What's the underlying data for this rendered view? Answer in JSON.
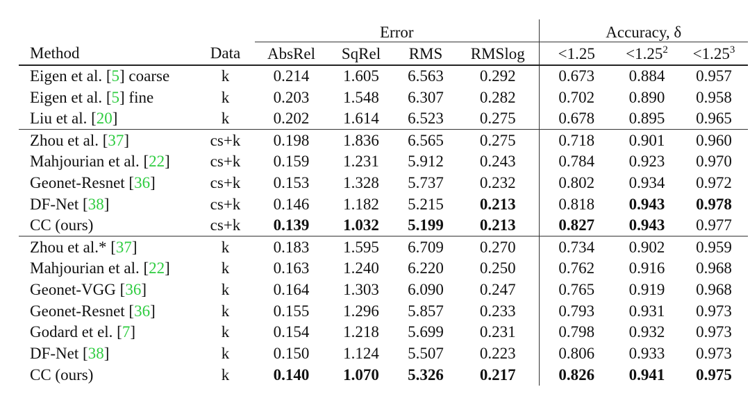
{
  "header": {
    "error_group": "Error",
    "accuracy_group": "Accuracy, δ",
    "columns": [
      "Method",
      "Data",
      "AbsRel",
      "SqRel",
      "RMS",
      "RMSlog"
    ],
    "acc_base": "<1.25",
    "acc_sup": [
      "",
      "2",
      "3"
    ]
  },
  "groups": [
    [
      {
        "m": "Eigen et al. [",
        "cite": "5",
        "post": "] coarse",
        "data": "k",
        "vals": [
          "0.214",
          "1.605",
          "6.563",
          "0.292",
          "0.673",
          "0.884",
          "0.957"
        ],
        "bold": []
      },
      {
        "m": "Eigen et al. [",
        "cite": "5",
        "post": "] fine",
        "data": "k",
        "vals": [
          "0.203",
          "1.548",
          "6.307",
          "0.282",
          "0.702",
          "0.890",
          "0.958"
        ],
        "bold": []
      },
      {
        "m": "Liu et al. [",
        "cite": "20",
        "post": "]",
        "data": "k",
        "vals": [
          "0.202",
          "1.614",
          "6.523",
          "0.275",
          "0.678",
          "0.895",
          "0.965"
        ],
        "bold": []
      }
    ],
    [
      {
        "m": "Zhou et al. [",
        "cite": "37",
        "post": "]",
        "data": "cs+k",
        "vals": [
          "0.198",
          "1.836",
          "6.565",
          "0.275",
          "0.718",
          "0.901",
          "0.960"
        ],
        "bold": []
      },
      {
        "m": "Mahjourian et al. [",
        "cite": "22",
        "post": "]",
        "data": "cs+k",
        "vals": [
          "0.159",
          "1.231",
          "5.912",
          "0.243",
          "0.784",
          "0.923",
          "0.970"
        ],
        "bold": []
      },
      {
        "m": "Geonet-Resnet [",
        "cite": "36",
        "post": "]",
        "data": "cs+k",
        "vals": [
          "0.153",
          "1.328",
          "5.737",
          "0.232",
          "0.802",
          "0.934",
          "0.972"
        ],
        "bold": []
      },
      {
        "m": "DF-Net [",
        "cite": "38",
        "post": "]",
        "data": "cs+k",
        "vals": [
          "0.146",
          "1.182",
          "5.215",
          "0.213",
          "0.818",
          "0.943",
          "0.978"
        ],
        "bold": [
          3,
          5,
          6
        ]
      },
      {
        "m": "CC (ours)",
        "cite": "",
        "post": "",
        "data": "cs+k",
        "vals": [
          "0.139",
          "1.032",
          "5.199",
          "0.213",
          "0.827",
          "0.943",
          "0.977"
        ],
        "bold": [
          0,
          1,
          2,
          3,
          4,
          5
        ]
      }
    ],
    [
      {
        "m": "Zhou et al.* [",
        "cite": "37",
        "post": "]",
        "data": "k",
        "vals": [
          "0.183",
          "1.595",
          "6.709",
          "0.270",
          "0.734",
          "0.902",
          "0.959"
        ],
        "bold": []
      },
      {
        "m": "Mahjourian et al. [",
        "cite": "22",
        "post": "]",
        "data": "k",
        "vals": [
          "0.163",
          "1.240",
          "6.220",
          "0.250",
          "0.762",
          "0.916",
          "0.968"
        ],
        "bold": []
      },
      {
        "m": "Geonet-VGG [",
        "cite": "36",
        "post": "]",
        "data": "k",
        "vals": [
          "0.164",
          "1.303",
          "6.090",
          "0.247",
          "0.765",
          "0.919",
          "0.968"
        ],
        "bold": []
      },
      {
        "m": "Geonet-Resnet [",
        "cite": "36",
        "post": "]",
        "data": "k",
        "vals": [
          "0.155",
          "1.296",
          "5.857",
          "0.233",
          "0.793",
          "0.931",
          "0.973"
        ],
        "bold": []
      },
      {
        "m": "Godard et el. [",
        "cite": "7",
        "post": "]",
        "data": "k",
        "vals": [
          "0.154",
          "1.218",
          "5.699",
          "0.231",
          "0.798",
          "0.932",
          "0.973"
        ],
        "bold": []
      },
      {
        "m": "DF-Net [",
        "cite": "38",
        "post": "]",
        "data": "k",
        "vals": [
          "0.150",
          "1.124",
          "5.507",
          "0.223",
          "0.806",
          "0.933",
          "0.973"
        ],
        "bold": []
      },
      {
        "m": "CC (ours)",
        "cite": "",
        "post": "",
        "data": "k",
        "vals": [
          "0.140",
          "1.070",
          "5.326",
          "0.217",
          "0.826",
          "0.941",
          "0.975"
        ],
        "bold": [
          0,
          1,
          2,
          3,
          4,
          5,
          6
        ]
      }
    ]
  ]
}
